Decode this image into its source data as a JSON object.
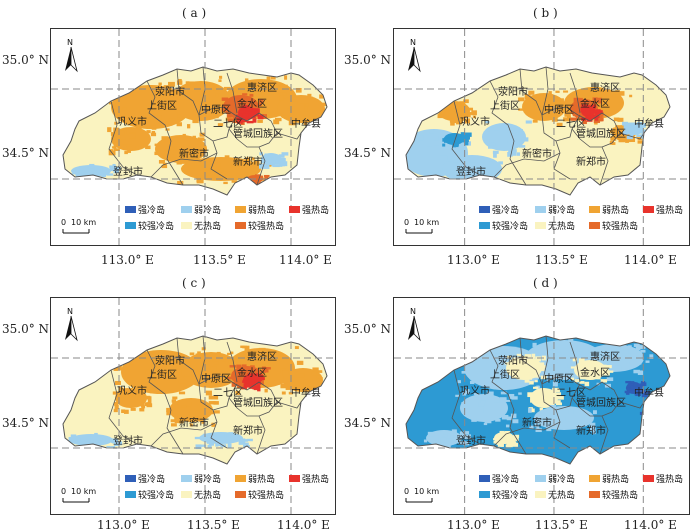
{
  "panels": [
    {
      "label": "( a )",
      "scheme": "a"
    },
    {
      "label": "( b )",
      "scheme": "b"
    },
    {
      "label": "( c )",
      "scheme": "c"
    },
    {
      "label": "( d )",
      "scheme": "d"
    }
  ],
  "axes": {
    "lat_top": "35.0° N",
    "lat_bottom": "34.5° N",
    "lon_1": "113.0° E",
    "lon_2": "113.5° E",
    "lon_3": "114.0° E"
  },
  "north": "N",
  "scale_bar": {
    "zero": "0",
    "label": "10 km"
  },
  "places": {
    "huiji": "惠济区",
    "xingyang": "荥阳市",
    "shangjie": "上街区",
    "zhongyuan": "中原区",
    "jinshui": "金水区",
    "erqi": "二七区",
    "guancheng": "管城回族区",
    "gongyi": "巩义市",
    "zhongmou": "中牟县",
    "xinmi": "新密市",
    "dengfeng": "登封市",
    "xinzheng": "新郑市"
  },
  "legend": [
    {
      "label": "强冷岛",
      "color": "#2f5fb8"
    },
    {
      "label": "弱冷岛",
      "color": "#9fd0ee"
    },
    {
      "label": "弱热岛",
      "color": "#f0a433"
    },
    {
      "label": "强热岛",
      "color": "#e8332c"
    },
    {
      "label": "较强冷岛",
      "color": "#2d9ad3"
    },
    {
      "label": "无热岛",
      "color": "#faf3c0"
    },
    {
      "label": "较强热岛",
      "color": "#e56a2a"
    }
  ],
  "colors": {
    "strong_cold": "#2f5fb8",
    "weak_cold": "#9fd0ee",
    "weak_heat": "#f0a433",
    "strong_heat": "#e8332c",
    "mid_cold": "#2d9ad3",
    "none": "#faf3c0",
    "mid_heat": "#e56a2a"
  }
}
